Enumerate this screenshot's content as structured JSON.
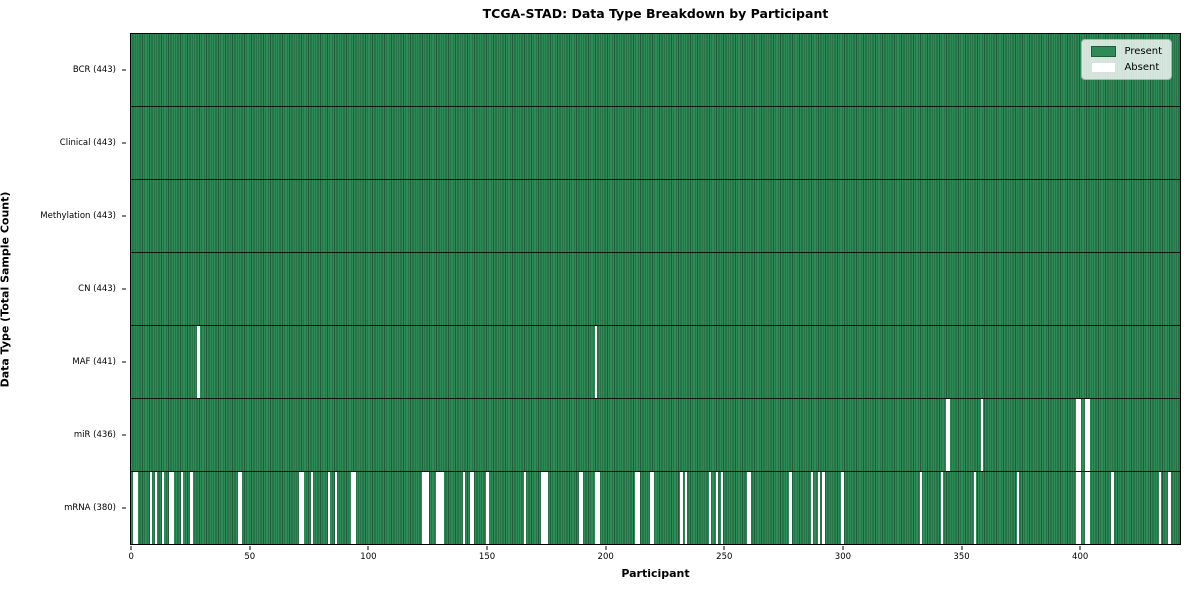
{
  "title": "TCGA-STAD: Data Type Breakdown by Participant",
  "chart_data": {
    "type": "heatmap",
    "title": "TCGA-STAD: Data Type Breakdown by Participant",
    "xlabel": "Participant",
    "ylabel": "Data Type (Total Sample Count)",
    "x_range": [
      -0.5,
      442.5
    ],
    "n_participants": 443,
    "x_ticks": [
      0,
      50,
      100,
      150,
      200,
      250,
      300,
      350,
      400
    ],
    "grid": "row-separators",
    "colors": {
      "present": "#2e8b57",
      "present_edge": "#1f5c3a",
      "absent": "#ffffff",
      "row_separator": "#000000"
    },
    "legend": {
      "position": "upper-right",
      "entries": [
        {
          "label": "Present",
          "color": "#2e8b57"
        },
        {
          "label": "Absent",
          "color": "#ffffff"
        }
      ]
    },
    "rows": [
      {
        "label": "BCR (443)",
        "present_count": 443,
        "absent_count": 0,
        "absent_stripes": []
      },
      {
        "label": "Clinical (443)",
        "present_count": 443,
        "absent_count": 0,
        "absent_stripes": []
      },
      {
        "label": "Methylation (443)",
        "present_count": 443,
        "absent_count": 0,
        "absent_stripes": []
      },
      {
        "label": "CN (443)",
        "present_count": 443,
        "absent_count": 0,
        "absent_stripes": []
      },
      {
        "label": "MAF (441)",
        "present_count": 441,
        "absent_count": 2,
        "absent_stripes": [
          [
            28,
            1
          ],
          [
            196,
            1
          ]
        ]
      },
      {
        "label": "miR (436)",
        "present_count": 436,
        "absent_count": 7,
        "absent_stripes": [
          [
            344,
            2
          ],
          [
            359,
            1
          ],
          [
            399,
            2
          ],
          [
            403,
            2
          ]
        ]
      },
      {
        "label": "mRNA (380)",
        "present_count": 380,
        "absent_count": 63,
        "absent_stripes": [
          [
            1,
            2
          ],
          [
            8,
            1
          ],
          [
            10,
            1
          ],
          [
            13,
            1
          ],
          [
            16,
            2
          ],
          [
            21,
            1
          ],
          [
            25,
            1
          ],
          [
            45,
            2
          ],
          [
            71,
            2
          ],
          [
            76,
            1
          ],
          [
            83,
            1
          ],
          [
            86,
            1
          ],
          [
            93,
            2
          ],
          [
            123,
            3
          ],
          [
            129,
            3
          ],
          [
            140,
            1
          ],
          [
            143,
            2
          ],
          [
            150,
            1
          ],
          [
            166,
            1
          ],
          [
            173,
            3
          ],
          [
            189,
            2
          ],
          [
            196,
            2
          ],
          [
            213,
            2
          ],
          [
            219,
            2
          ],
          [
            232,
            1
          ],
          [
            234,
            1
          ],
          [
            244,
            1
          ],
          [
            247,
            1
          ],
          [
            249,
            1
          ],
          [
            260,
            2
          ],
          [
            278,
            1
          ],
          [
            287,
            1
          ],
          [
            290,
            1
          ],
          [
            292,
            1
          ],
          [
            300,
            1
          ],
          [
            333,
            1
          ],
          [
            342,
            1
          ],
          [
            356,
            1
          ],
          [
            374,
            1
          ],
          [
            399,
            2
          ],
          [
            403,
            2
          ],
          [
            414,
            1
          ],
          [
            434,
            1
          ],
          [
            438,
            1
          ]
        ]
      }
    ]
  }
}
